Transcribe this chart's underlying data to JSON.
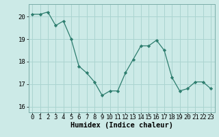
{
  "x": [
    0,
    1,
    2,
    3,
    4,
    5,
    6,
    7,
    8,
    9,
    10,
    11,
    12,
    13,
    14,
    15,
    16,
    17,
    18,
    19,
    20,
    21,
    22,
    23
  ],
  "y": [
    20.1,
    20.1,
    20.2,
    19.6,
    19.8,
    19.0,
    17.8,
    17.5,
    17.1,
    16.5,
    16.7,
    16.7,
    17.5,
    18.1,
    18.7,
    18.7,
    18.95,
    18.5,
    17.3,
    16.7,
    16.8,
    17.1,
    17.1,
    16.8
  ],
  "line_color": "#2d7d6e",
  "marker": "D",
  "marker_size": 2.2,
  "bg_color": "#cceae7",
  "grid_color": "#aad4d0",
  "xlabel": "Humidex (Indice chaleur)",
  "ylim": [
    15.75,
    20.55
  ],
  "xlim": [
    -0.5,
    23.5
  ],
  "yticks": [
    16,
    17,
    18,
    19,
    20
  ],
  "xticks": [
    0,
    1,
    2,
    3,
    4,
    5,
    6,
    7,
    8,
    9,
    10,
    11,
    12,
    13,
    14,
    15,
    16,
    17,
    18,
    19,
    20,
    21,
    22,
    23
  ],
  "xlabel_fontsize": 7.5,
  "tick_fontsize": 6.5
}
